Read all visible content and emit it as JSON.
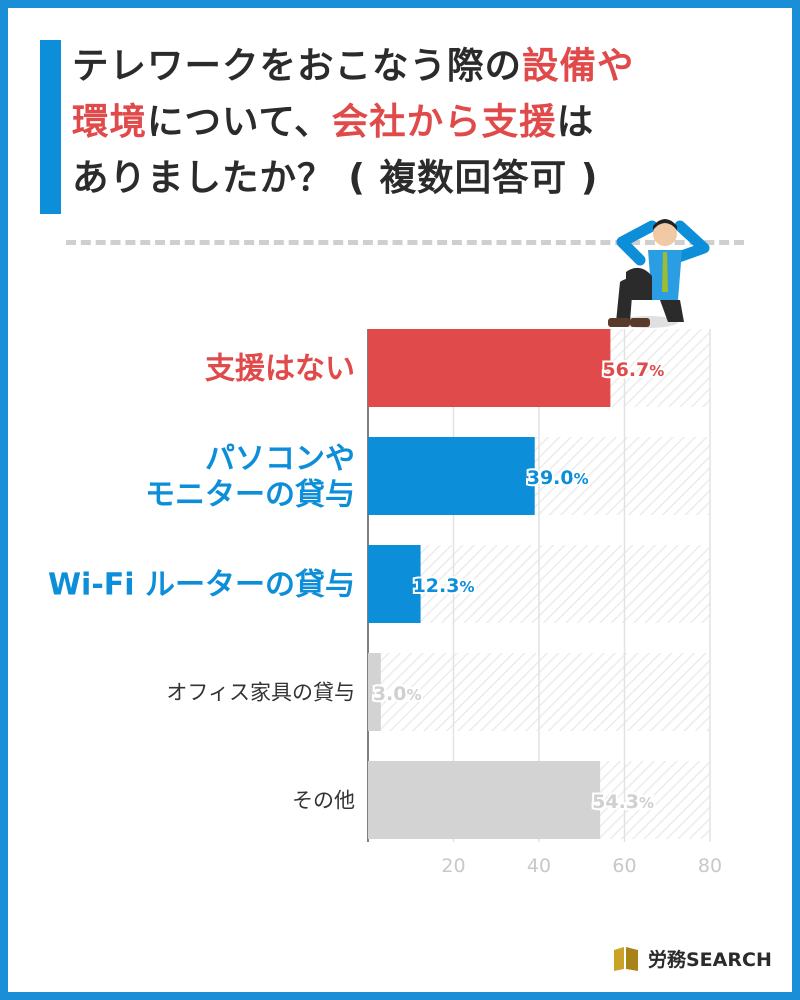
{
  "title": {
    "line1_plain": "テレワークをおこなう際の",
    "line1_highlight": "設備や",
    "line2_highlight1": "環境",
    "line2_plain": "について、",
    "line2_highlight2": "会社から支援",
    "line2_tail": "は",
    "line3": "ありましたか？ ( 複数回答可 )"
  },
  "colors": {
    "accent_blue": "#0d8ed8",
    "highlight_red": "#e04a4a",
    "gray": "#cfcfcf",
    "frame": "#1a8fd8"
  },
  "chart_data": {
    "type": "bar",
    "orientation": "horizontal",
    "categories": [
      "支援はない",
      "パソコンや\nモニターの貸与",
      "Wi-Fi ルーターの貸与",
      "オフィス家具の貸与",
      "その他"
    ],
    "values": [
      56.7,
      39.0,
      12.3,
      3.0,
      54.3
    ],
    "value_labels": [
      {
        "num": "56.7",
        "unit": "%"
      },
      {
        "num": "39.0",
        "unit": "%"
      },
      {
        "num": "12.3",
        "unit": "%"
      },
      {
        "num": "3.0",
        "unit": "%"
      },
      {
        "num": "54.3",
        "unit": "%"
      }
    ],
    "bar_colors": [
      "#e04a4a",
      "#0d8ed8",
      "#0d8ed8",
      "#d3d3d3",
      "#d3d3d3"
    ],
    "label_colors": [
      "#e04a4a",
      "#0d8ed8",
      "#0d8ed8",
      "#333333",
      "#333333"
    ],
    "value_label_colors": [
      "#e04a4a",
      "#0d8ed8",
      "#0d8ed8",
      "#d0d0d0",
      "#d0d0d0"
    ],
    "x_ticks": [
      20,
      40,
      60,
      80
    ],
    "xlim": [
      0,
      80
    ],
    "grid": true
  },
  "logo": {
    "text": "労務SEARCH"
  }
}
